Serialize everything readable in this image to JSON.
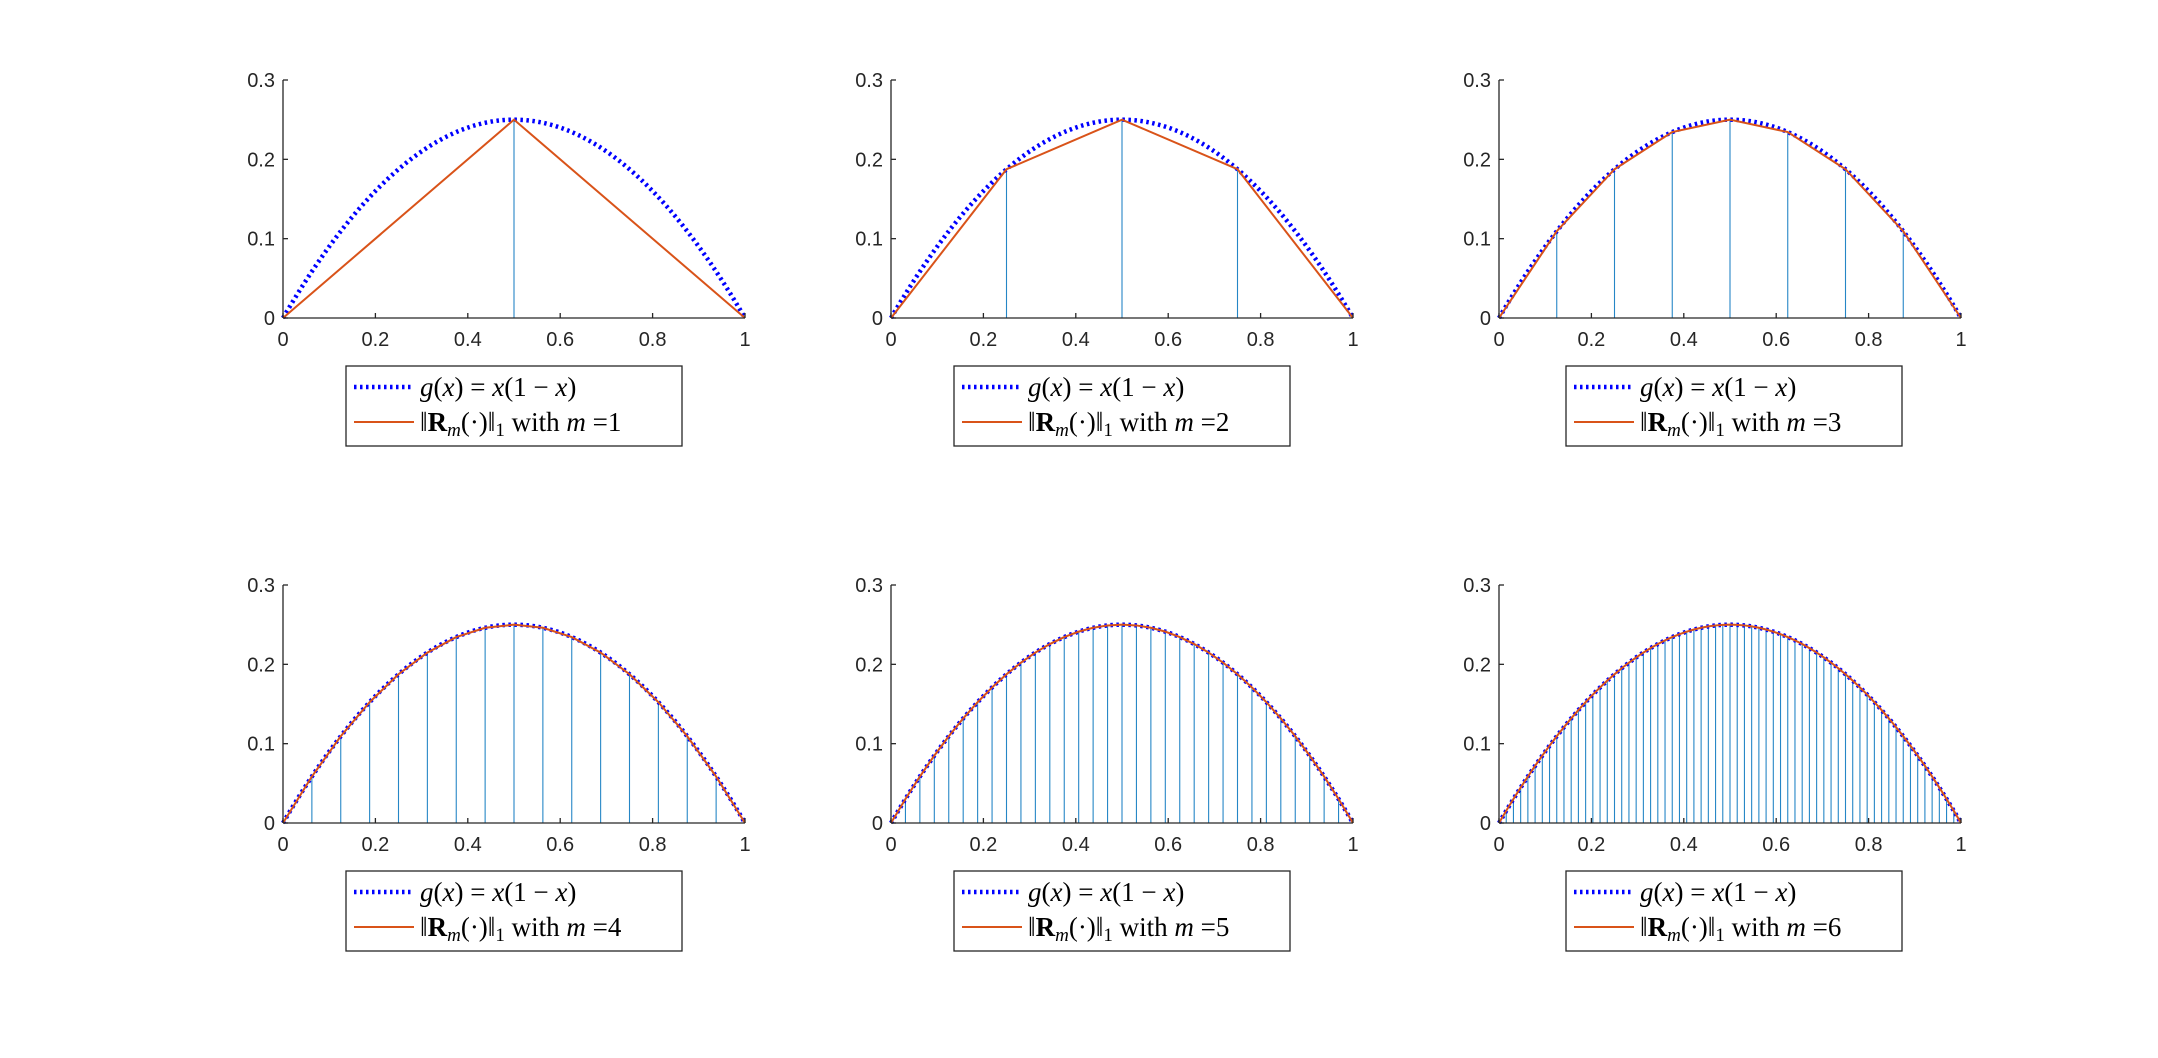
{
  "colors": {
    "g_curve": "#0000ff",
    "approx_line": "#d95319",
    "stems": "#0072bd",
    "axes": "#262626",
    "legend_border": "#262626"
  },
  "legend_common": {
    "g_label": "g(x) = x(1 − x)",
    "r_label_prefix": "‖Rm(·)‖1 with m ="
  },
  "chart_data": [
    {
      "type": "line",
      "m": 1,
      "m_label": "1",
      "xlim": [
        0,
        1
      ],
      "ylim": [
        0,
        0.3
      ],
      "xticks": [
        "0",
        "0.2",
        "0.4",
        "0.6",
        "0.8",
        "1"
      ],
      "yticks": [
        "0",
        "0.1",
        "0.2",
        "0.3"
      ],
      "series": [
        {
          "name": "g(x) = x(1 − x)",
          "style": "dotted",
          "function": "x(1 − x)"
        },
        {
          "name": "‖Rm(·)‖1 with m =1",
          "style": "solid",
          "breakpoints": 2
        }
      ],
      "stems": "vertical lines at interior breakpoints"
    },
    {
      "type": "line",
      "m": 2,
      "m_label": "2",
      "xlim": [
        0,
        1
      ],
      "ylim": [
        0,
        0.3
      ],
      "xticks": [
        "0",
        "0.2",
        "0.4",
        "0.6",
        "0.8",
        "1"
      ],
      "yticks": [
        "0",
        "0.1",
        "0.2",
        "0.3"
      ],
      "series": [
        {
          "name": "g(x) = x(1 − x)",
          "style": "dotted",
          "function": "x(1 − x)"
        },
        {
          "name": "‖Rm(·)‖1 with m =2",
          "style": "solid",
          "breakpoints": 4
        }
      ],
      "stems": "vertical lines at interior breakpoints"
    },
    {
      "type": "line",
      "m": 3,
      "m_label": "3",
      "xlim": [
        0,
        1
      ],
      "ylim": [
        0,
        0.3
      ],
      "xticks": [
        "0",
        "0.2",
        "0.4",
        "0.6",
        "0.8",
        "1"
      ],
      "yticks": [
        "0",
        "0.1",
        "0.2",
        "0.3"
      ],
      "series": [
        {
          "name": "g(x) = x(1 − x)",
          "style": "dotted",
          "function": "x(1 − x)"
        },
        {
          "name": "‖Rm(·)‖1 with m =3",
          "style": "solid",
          "breakpoints": 8
        }
      ],
      "stems": "vertical lines at interior breakpoints"
    },
    {
      "type": "line",
      "m": 4,
      "m_label": "4",
      "xlim": [
        0,
        1
      ],
      "ylim": [
        0,
        0.3
      ],
      "xticks": [
        "0",
        "0.2",
        "0.4",
        "0.6",
        "0.8",
        "1"
      ],
      "yticks": [
        "0",
        "0.1",
        "0.2",
        "0.3"
      ],
      "series": [
        {
          "name": "g(x) = x(1 − x)",
          "style": "dotted",
          "function": "x(1 − x)"
        },
        {
          "name": "‖Rm(·)‖1 with m =4",
          "style": "solid",
          "breakpoints": 16
        }
      ],
      "stems": "vertical lines at interior breakpoints"
    },
    {
      "type": "line",
      "m": 5,
      "m_label": "5",
      "xlim": [
        0,
        1
      ],
      "ylim": [
        0,
        0.3
      ],
      "xticks": [
        "0",
        "0.2",
        "0.4",
        "0.6",
        "0.8",
        "1"
      ],
      "yticks": [
        "0",
        "0.1",
        "0.2",
        "0.3"
      ],
      "series": [
        {
          "name": "g(x) = x(1 − x)",
          "style": "dotted",
          "function": "x(1 − x)"
        },
        {
          "name": "‖Rm(·)‖1 with m =5",
          "style": "solid",
          "breakpoints": 32
        }
      ],
      "stems": "vertical lines at interior breakpoints"
    },
    {
      "type": "line",
      "m": 6,
      "m_label": "6",
      "xlim": [
        0,
        1
      ],
      "ylim": [
        0,
        0.3
      ],
      "xticks": [
        "0",
        "0.2",
        "0.4",
        "0.6",
        "0.8",
        "1"
      ],
      "yticks": [
        "0",
        "0.1",
        "0.2",
        "0.3"
      ],
      "series": [
        {
          "name": "g(x) = x(1 − x)",
          "style": "dotted",
          "function": "x(1 − x)"
        },
        {
          "name": "‖Rm(·)‖1 with m =6",
          "style": "solid",
          "breakpoints": 64
        }
      ],
      "stems": "vertical lines at interior breakpoints"
    }
  ]
}
